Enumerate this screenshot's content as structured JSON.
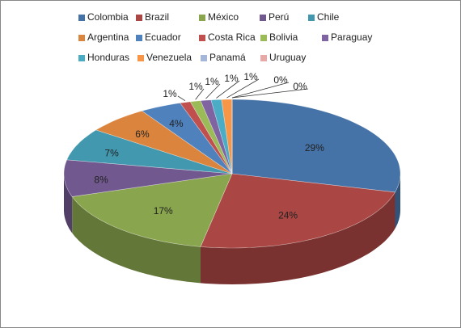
{
  "chart_data": {
    "type": "pie3d",
    "categories": [
      "Colombia",
      "Brazil",
      "México",
      "Perú",
      "Chile",
      "Argentina",
      "Ecuador",
      "Costa Rica",
      "Bolivia",
      "Paraguay",
      "Honduras",
      "Venezuela",
      "Panamá",
      "Uruguay"
    ],
    "values": [
      29,
      24,
      17,
      8,
      7,
      6,
      4,
      1,
      1,
      1,
      1,
      1,
      0,
      0
    ],
    "value_labels": [
      "29%",
      "24%",
      "17%",
      "8%",
      "7%",
      "6%",
      "4%",
      "1%",
      "1%",
      "1%",
      "1%",
      "1%",
      "0%",
      "0%"
    ],
    "colors": [
      "#4572a7",
      "#aa4643",
      "#89a54e",
      "#71588f",
      "#4198af",
      "#db843d",
      "#4f81bd",
      "#c0504d",
      "#9bbb59",
      "#8064a2",
      "#4bacc6",
      "#f79646",
      "#a5b6d8",
      "#e6a9a7"
    ],
    "legend": "top"
  }
}
